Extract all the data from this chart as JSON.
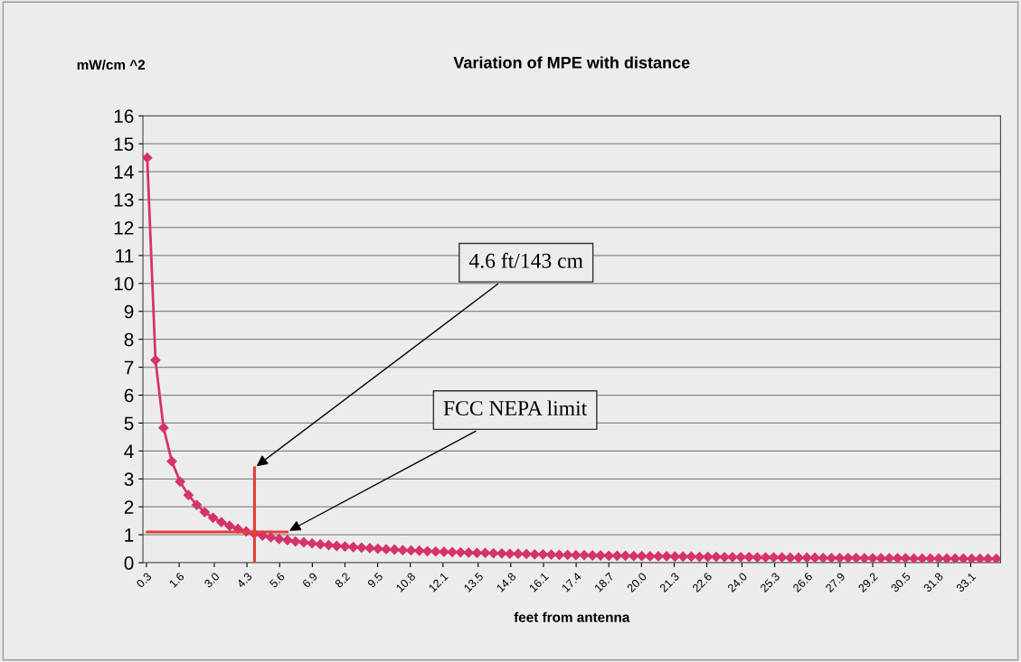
{
  "chart_data": {
    "type": "line",
    "title": "Variation of MPE with distance",
    "ylabel": "mW/cm ^2",
    "xlabel": "feet from antenna",
    "xlim": [
      0.16,
      34.29
    ],
    "xticks": [
      0.3,
      1.6,
      {
        "value": 3,
        "label": "3.0"
      },
      4.3,
      5.6,
      6.9,
      8.2,
      9.5,
      10.8,
      12.1,
      13.5,
      14.8,
      16.1,
      17.4,
      18.7,
      {
        "value": 20,
        "label": "20.0"
      },
      21.3,
      22.6,
      {
        "value": 24,
        "label": "24.0"
      },
      25.3,
      26.6,
      27.9,
      29.2,
      30.5,
      31.8,
      33.1
    ],
    "ylim": [
      0,
      16
    ],
    "yticks": [
      0,
      1,
      2,
      3,
      4,
      5,
      6,
      7,
      8,
      9,
      10,
      11,
      12,
      13,
      14,
      15,
      16
    ],
    "grid": "y",
    "legend": false,
    "marker": "diamond",
    "line_style": "solid",
    "series": [
      {
        "color": "#d6336c",
        "x": [
          0.33,
          0.66,
          0.98,
          1.31,
          1.64,
          1.97,
          2.3,
          2.62,
          2.95,
          3.28,
          3.61,
          3.94,
          4.27,
          4.59,
          4.92,
          5.25,
          5.58,
          5.91,
          6.23,
          6.56,
          6.89,
          7.22,
          7.55,
          7.87,
          8.2,
          8.53,
          8.86,
          9.19,
          9.51,
          9.84,
          10.17,
          10.5,
          10.83,
          11.16,
          11.48,
          11.81,
          12.14,
          12.47,
          12.8,
          13.12,
          13.45,
          13.78,
          14.11,
          14.44,
          14.76,
          15.09,
          15.42,
          15.75,
          16.08,
          16.41,
          16.73,
          17.06,
          17.39,
          17.72,
          18.05,
          18.37,
          18.7,
          19.03,
          19.36,
          19.69,
          20.01,
          20.34,
          20.67,
          21.0,
          21.33,
          21.65,
          21.98,
          22.31,
          22.64,
          22.97,
          23.3,
          23.62,
          23.95,
          24.28,
          24.61,
          24.94,
          25.26,
          25.59,
          25.92,
          26.25,
          26.58,
          26.9,
          27.23,
          27.56,
          27.89,
          28.22,
          28.54,
          28.87,
          29.2,
          29.53,
          29.86,
          30.19,
          30.51,
          30.84,
          31.17,
          31.5,
          31.83,
          32.15,
          32.48,
          32.81,
          33.14,
          33.47,
          33.79,
          34.12
        ],
        "values": [
          14.5,
          7.25,
          4.83,
          3.63,
          2.9,
          2.42,
          2.07,
          1.81,
          1.61,
          1.45,
          1.32,
          1.21,
          1.12,
          1.04,
          0.97,
          0.91,
          0.85,
          0.81,
          0.76,
          0.73,
          0.69,
          0.66,
          0.63,
          0.6,
          0.58,
          0.56,
          0.54,
          0.52,
          0.5,
          0.48,
          0.47,
          0.45,
          0.44,
          0.43,
          0.41,
          0.4,
          0.39,
          0.38,
          0.37,
          0.36,
          0.35,
          0.35,
          0.34,
          0.33,
          0.32,
          0.32,
          0.31,
          0.3,
          0.3,
          0.29,
          0.28,
          0.28,
          0.27,
          0.27,
          0.26,
          0.26,
          0.25,
          0.25,
          0.25,
          0.24,
          0.24,
          0.23,
          0.23,
          0.23,
          0.22,
          0.22,
          0.22,
          0.21,
          0.21,
          0.21,
          0.2,
          0.2,
          0.2,
          0.2,
          0.19,
          0.19,
          0.19,
          0.19,
          0.18,
          0.18,
          0.18,
          0.18,
          0.17,
          0.17,
          0.17,
          0.17,
          0.17,
          0.16,
          0.16,
          0.16,
          0.16,
          0.16,
          0.16,
          0.15,
          0.15,
          0.15,
          0.15,
          0.15,
          0.15,
          0.15,
          0.14,
          0.14,
          0.14,
          0.14
        ]
      },
      {
        "color": "#e0403a",
        "marker": "none",
        "x": [
          0.33,
          5.9
        ],
        "values": [
          1.1,
          1.1
        ]
      },
      {
        "color": "#e0403a",
        "marker": "none",
        "x": [
          4.6,
          4.6
        ],
        "values": [
          0,
          3.4
        ]
      }
    ],
    "annotations": [
      {
        "text": "4.6 ft/143 cm",
        "x": 4.6,
        "y": 3.4
      },
      {
        "text": "FCC NEPA limit",
        "x": 5.9,
        "y": 1.1
      }
    ]
  }
}
